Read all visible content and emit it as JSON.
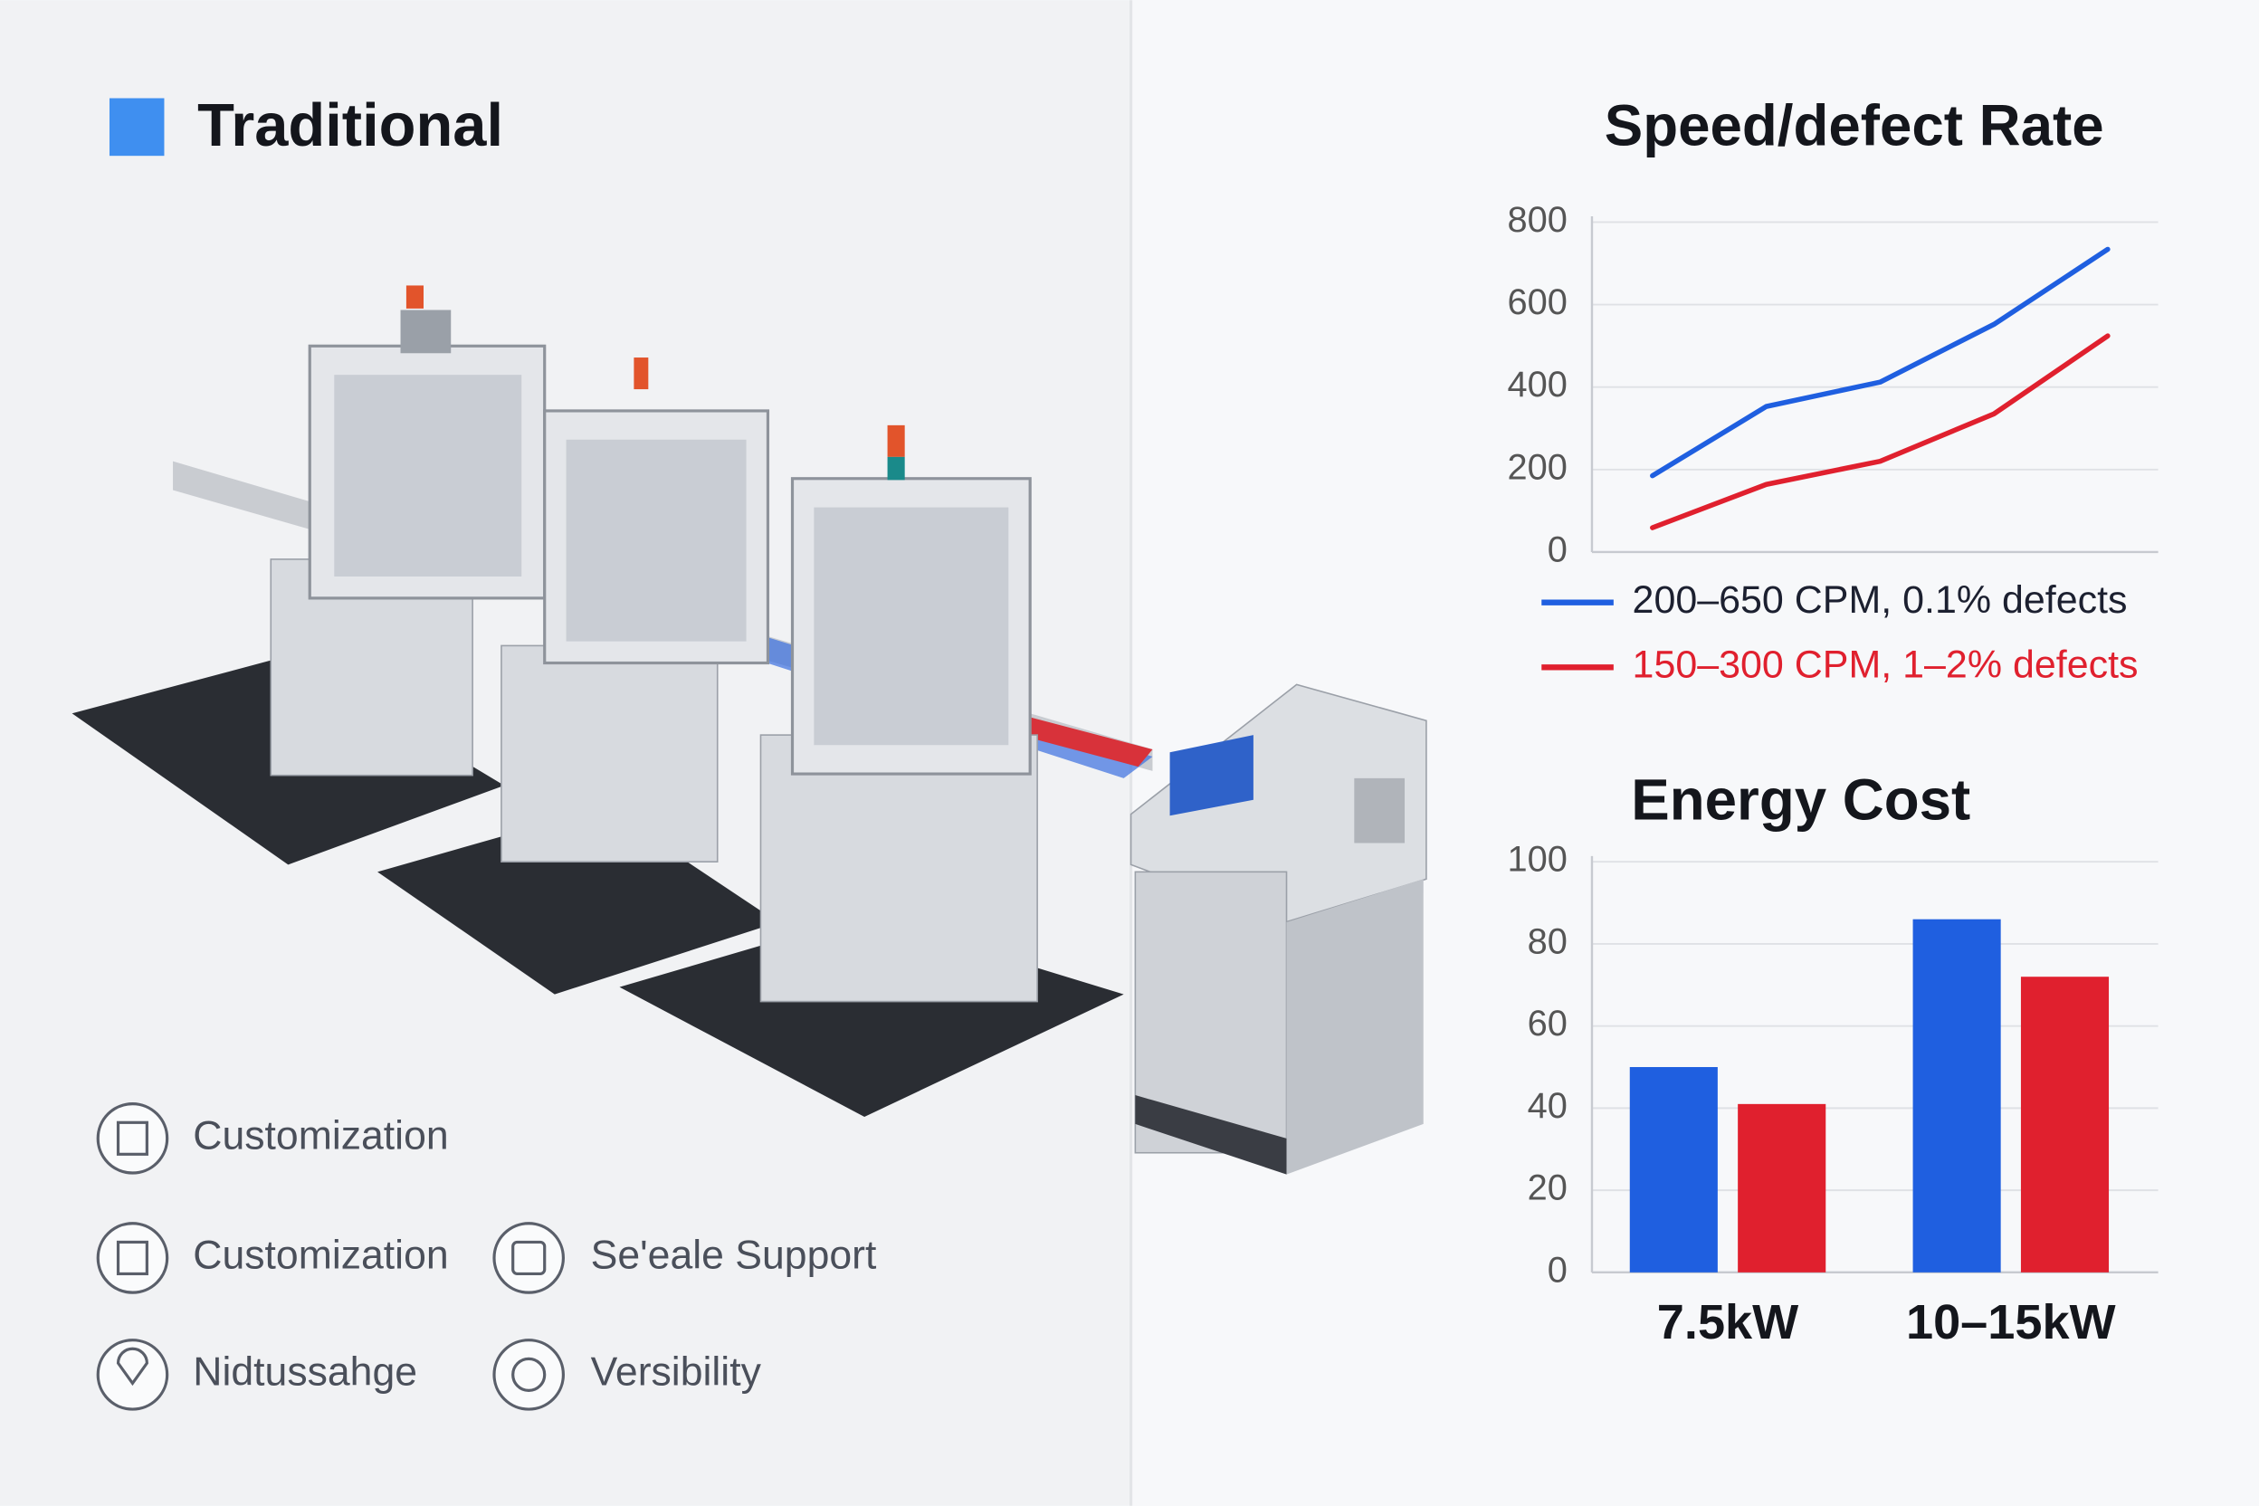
{
  "header": {
    "title": "Traditional"
  },
  "features": [
    "Customization",
    "Customization",
    "Se'eale Support",
    "Nidtussahge",
    "Versibility"
  ],
  "chart_data": [
    {
      "type": "line",
      "title": "Speed/defect Rate",
      "categories": [
        null,
        null,
        null,
        null,
        null
      ],
      "series": [
        {
          "name": "200–650 CPM, 0.1% defects",
          "color": "#1f5fe0",
          "values": [
            185,
            353,
            412,
            552,
            734
          ]
        },
        {
          "name": "150–300 CPM, 1–2% defects",
          "color": "#e0202e",
          "values": [
            59,
            164,
            220,
            335,
            524
          ]
        }
      ],
      "ylim": [
        0,
        800
      ],
      "yticks": [
        0,
        200,
        400,
        600,
        800
      ],
      "grid": true
    },
    {
      "type": "bar",
      "title": "Energy Cost",
      "categories": [
        "7.5kW",
        "10–15kW"
      ],
      "series": [
        {
          "color": "#1f5fe0",
          "values": [
            50,
            86
          ]
        },
        {
          "color": "#e0202e",
          "values": [
            41,
            72
          ]
        }
      ],
      "ylim": [
        0,
        100
      ],
      "yticks": [
        0,
        20,
        40,
        60,
        80,
        100
      ],
      "grid": true
    }
  ]
}
